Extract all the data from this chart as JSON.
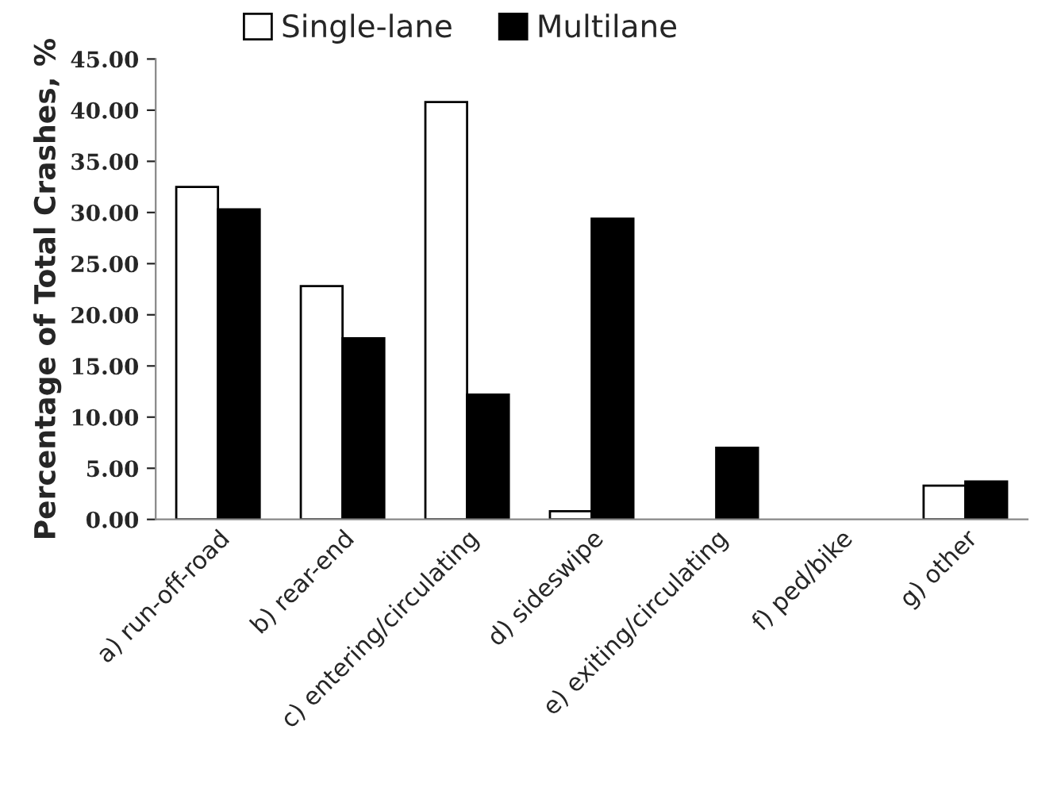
{
  "chart_data": {
    "type": "bar",
    "ylabel": "Percentage of Total Crashes, %",
    "categories": [
      "a) run-off-road",
      "b) rear-end",
      "c) entering/circulating",
      "d) sideswipe",
      "e) exiting/circulating",
      "f) ped/bike",
      "g) other"
    ],
    "series": [
      {
        "name": "Single-lane",
        "color": "#ffffff",
        "values": [
          32.5,
          22.8,
          40.8,
          0.8,
          0,
          0,
          3.3
        ]
      },
      {
        "name": "Multilane",
        "color": "#000000",
        "values": [
          30.3,
          17.7,
          12.2,
          29.4,
          7.0,
          0,
          3.7
        ]
      }
    ],
    "ylim": [
      0,
      45
    ],
    "yticks": [
      {
        "value": 0,
        "label": "0.00"
      },
      {
        "value": 5,
        "label": "5.00"
      },
      {
        "value": 10,
        "label": "10.00"
      },
      {
        "value": 15,
        "label": "15.00"
      },
      {
        "value": 20,
        "label": "20.00"
      },
      {
        "value": 25,
        "label": "25.00"
      },
      {
        "value": 30,
        "label": "30.00"
      },
      {
        "value": 35,
        "label": "35.00"
      },
      {
        "value": 40,
        "label": "40.00"
      },
      {
        "value": 45,
        "label": "45.00"
      }
    ],
    "grid": false,
    "legend": "top"
  }
}
